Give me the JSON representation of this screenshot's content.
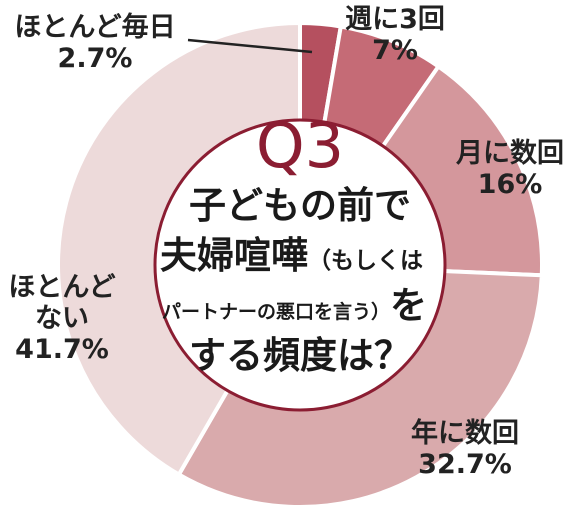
{
  "chart_data": {
    "type": "donut",
    "title": "Q3",
    "subtitle": [
      "子どもの前で",
      "夫婦喧嘩",
      "（もしくは",
      "パートナーの悪口を言う）",
      "を",
      "する頻度は？"
    ],
    "categories": [
      "ほとんど毎日",
      "週に3回",
      "月に数回",
      "年に数回",
      "ほとんどない"
    ],
    "values": [
      2.7,
      7,
      16,
      32.7,
      41.7
    ],
    "value_labels": [
      "2.7%",
      "7%",
      "16%",
      "32.7%",
      "41.7%"
    ],
    "colors": [
      "#b5505f",
      "#c56b76",
      "#d4979c",
      "#d9aaac",
      "#eddada"
    ]
  }
}
